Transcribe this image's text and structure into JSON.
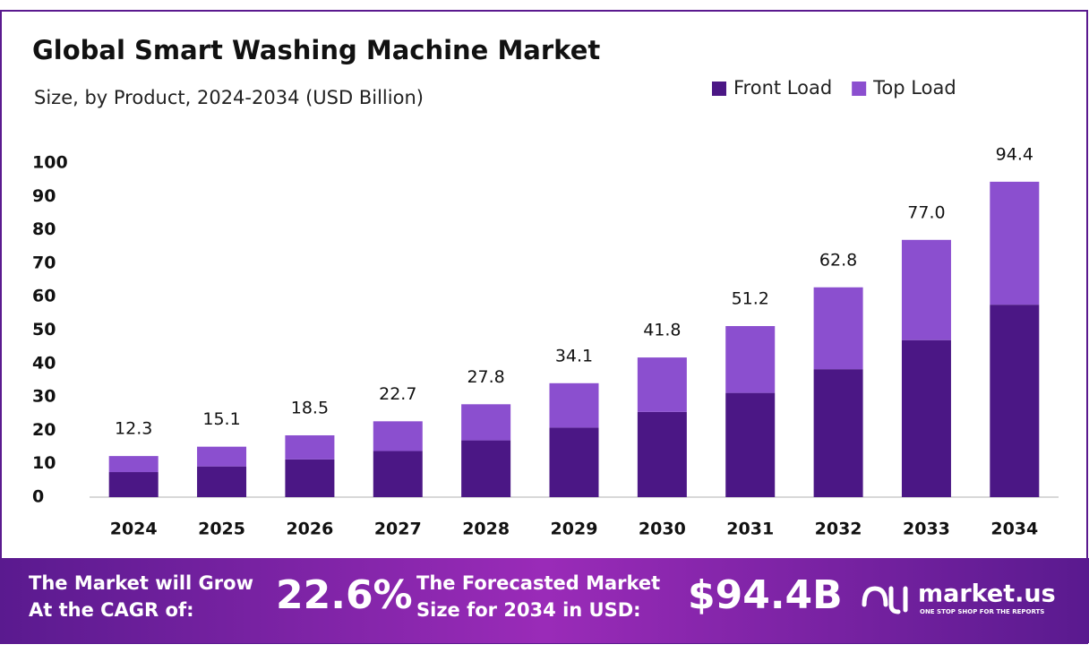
{
  "chart_data": {
    "type": "stacked-bar",
    "title": "Global Smart Washing Machine Market",
    "subtitle": "Size, by Product, 2024-2034 (USD Billion)",
    "categories": [
      "2024",
      "2025",
      "2026",
      "2027",
      "2028",
      "2029",
      "2030",
      "2031",
      "2032",
      "2033",
      "2034"
    ],
    "series": [
      {
        "name": "Front Load",
        "color": "#4b1785",
        "values": [
          7.5,
          9.2,
          11.3,
          13.8,
          17.0,
          20.8,
          25.5,
          31.2,
          38.3,
          47.0,
          57.6
        ]
      },
      {
        "name": "Top Load",
        "color": "#8b4fcf",
        "values": [
          4.8,
          5.9,
          7.2,
          8.9,
          10.8,
          13.3,
          16.3,
          20.0,
          24.5,
          30.0,
          36.8
        ]
      }
    ],
    "totals": [
      12.3,
      15.1,
      18.5,
      22.7,
      27.8,
      34.1,
      41.8,
      51.2,
      62.8,
      77.0,
      94.4
    ],
    "total_labels": [
      "12.3",
      "15.1",
      "18.5",
      "22.7",
      "27.8",
      "34.1",
      "41.8",
      "51.2",
      "62.8",
      "77.0",
      "94.4"
    ],
    "ylim": [
      0,
      100
    ],
    "yticks": [
      0,
      10,
      20,
      30,
      40,
      50,
      60,
      70,
      80,
      90,
      100
    ],
    "grid": false,
    "legend": "top-right"
  },
  "footer": {
    "cagr_text": [
      "The Market will Grow",
      "At the CAGR of:"
    ],
    "cagr_value": "22.6%",
    "forecast_text": [
      "The Forecasted Market",
      "Size for 2034 in USD:"
    ],
    "forecast_value": "$94.4B",
    "brand": "market.us",
    "tagline": "ONE STOP SHOP FOR THE REPORTS"
  }
}
